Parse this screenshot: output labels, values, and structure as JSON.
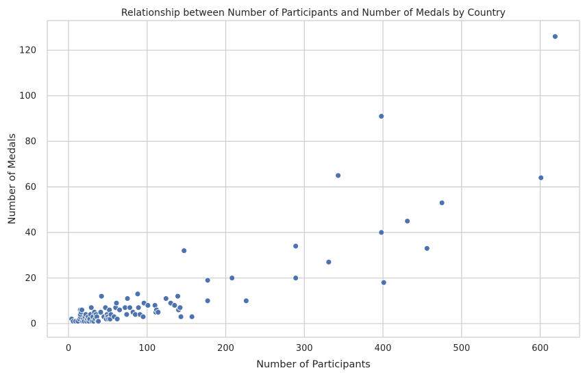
{
  "chart_data": {
    "type": "scatter",
    "title": "Relationship between Number of Participants and Number of Medals by Country",
    "xlabel": "Number of Participants",
    "ylabel": "Number of Medals",
    "xlim": [
      -27,
      650
    ],
    "ylim": [
      -6,
      133
    ],
    "xticks": [
      0,
      100,
      200,
      300,
      400,
      500,
      600
    ],
    "yticks": [
      0,
      20,
      40,
      60,
      80,
      100,
      120
    ],
    "grid": true,
    "point_color": "#4c72b0",
    "series": [
      {
        "points": [
          [
            4,
            2
          ],
          [
            6,
            1
          ],
          [
            9,
            1
          ],
          [
            12,
            1
          ],
          [
            14,
            2
          ],
          [
            15,
            3
          ],
          [
            15,
            4
          ],
          [
            15,
            6
          ],
          [
            16,
            5
          ],
          [
            17,
            6
          ],
          [
            18,
            1
          ],
          [
            19,
            2
          ],
          [
            20,
            1
          ],
          [
            21,
            3
          ],
          [
            22,
            4
          ],
          [
            23,
            1
          ],
          [
            24,
            2
          ],
          [
            25,
            3
          ],
          [
            26,
            1
          ],
          [
            27,
            2
          ],
          [
            28,
            4
          ],
          [
            29,
            7
          ],
          [
            30,
            1
          ],
          [
            31,
            3
          ],
          [
            32,
            1
          ],
          [
            33,
            5
          ],
          [
            34,
            2
          ],
          [
            35,
            4
          ],
          [
            36,
            3
          ],
          [
            37,
            1
          ],
          [
            38,
            1
          ],
          [
            41,
            5
          ],
          [
            42,
            12
          ],
          [
            45,
            3
          ],
          [
            47,
            7
          ],
          [
            48,
            2
          ],
          [
            49,
            4
          ],
          [
            50,
            3
          ],
          [
            51,
            2
          ],
          [
            52,
            6
          ],
          [
            53,
            2
          ],
          [
            54,
            4
          ],
          [
            58,
            3
          ],
          [
            60,
            7
          ],
          [
            61,
            9
          ],
          [
            62,
            2
          ],
          [
            65,
            6
          ],
          [
            72,
            7
          ],
          [
            74,
            4
          ],
          [
            75,
            11
          ],
          [
            78,
            7
          ],
          [
            82,
            5
          ],
          [
            85,
            4
          ],
          [
            88,
            13
          ],
          [
            89,
            7
          ],
          [
            91,
            4
          ],
          [
            95,
            3
          ],
          [
            96,
            9
          ],
          [
            101,
            8
          ],
          [
            110,
            8
          ],
          [
            111,
            5
          ],
          [
            112,
            6
          ],
          [
            114,
            5
          ],
          [
            124,
            11
          ],
          [
            130,
            9
          ],
          [
            135,
            8
          ],
          [
            139,
            12
          ],
          [
            140,
            6
          ],
          [
            142,
            7
          ],
          [
            143,
            3
          ],
          [
            147,
            32
          ],
          [
            157,
            3
          ],
          [
            177,
            19
          ],
          [
            177,
            10
          ],
          [
            208,
            20
          ],
          [
            226,
            10
          ],
          [
            289,
            34
          ],
          [
            289,
            20
          ],
          [
            331,
            27
          ],
          [
            343,
            65
          ],
          [
            398,
            91
          ],
          [
            398,
            40
          ],
          [
            401,
            18
          ],
          [
            431,
            45
          ],
          [
            456,
            33
          ],
          [
            475,
            53
          ],
          [
            601,
            64
          ],
          [
            619,
            126
          ]
        ]
      }
    ]
  }
}
